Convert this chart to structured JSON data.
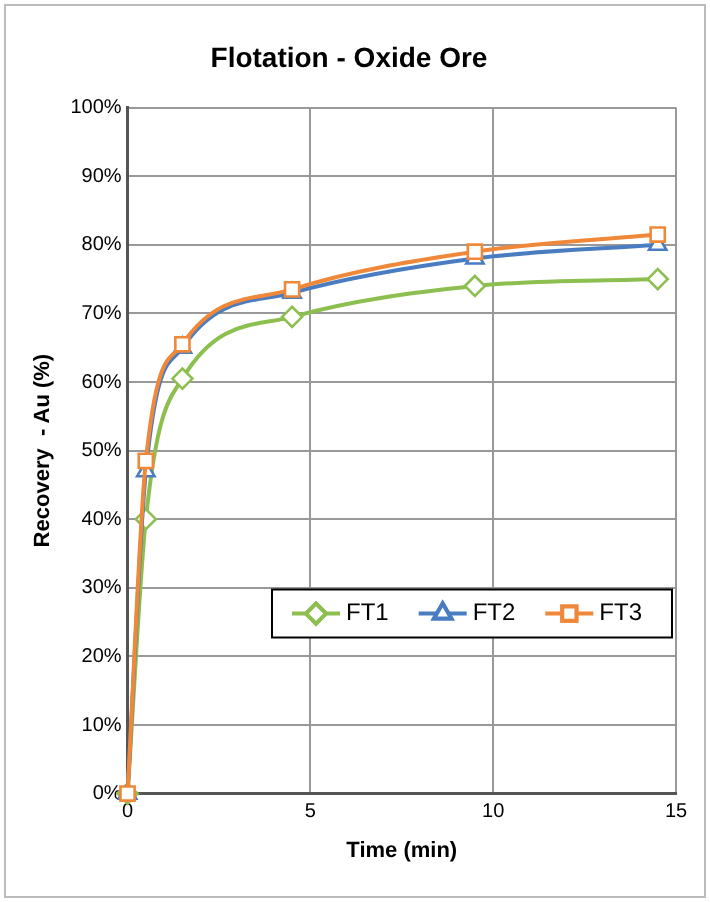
{
  "chart_data": {
    "type": "line",
    "title": "Flotation - Oxide Ore",
    "xlabel": "Time (min)",
    "ylabel": "Recovery  - Au (%)",
    "x": [
      0,
      0.5,
      1.5,
      4.5,
      9.5,
      14.5
    ],
    "series": [
      {
        "name": "FT1",
        "color": "#8cbf4f",
        "marker": "diamond",
        "values": [
          0,
          40,
          60.5,
          69.5,
          74,
          75
        ]
      },
      {
        "name": "FT2",
        "color": "#4a7cc1",
        "marker": "triangle",
        "values": [
          0,
          47,
          65,
          73,
          78,
          80
        ]
      },
      {
        "name": "FT3",
        "color": "#f0883a",
        "marker": "square",
        "values": [
          0,
          48.5,
          65.5,
          73.5,
          79,
          81.5
        ]
      }
    ],
    "xlim": [
      0,
      15
    ],
    "xticks": [
      0,
      5,
      10,
      15
    ],
    "ylim": [
      0,
      100
    ],
    "yticks": [
      {
        "value": 0,
        "label": "0%"
      },
      {
        "value": 10,
        "label": "10%"
      },
      {
        "value": 20,
        "label": "20%"
      },
      {
        "value": 30,
        "label": "30%"
      },
      {
        "value": 40,
        "label": "40%"
      },
      {
        "value": 50,
        "label": "50%"
      },
      {
        "value": 60,
        "label": "60%"
      },
      {
        "value": 70,
        "label": "70%"
      },
      {
        "value": 80,
        "label": "80%"
      },
      {
        "value": 90,
        "label": "90%"
      },
      {
        "value": 100,
        "label": "100%"
      }
    ],
    "grid": true,
    "legend": "bottom right",
    "line_style": "solid"
  }
}
